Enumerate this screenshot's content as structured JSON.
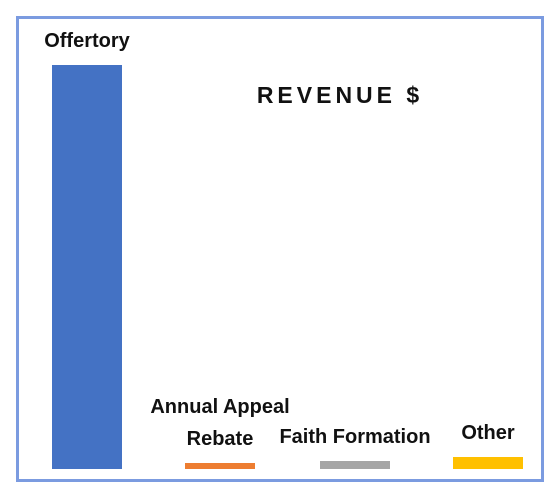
{
  "chart_data": {
    "type": "bar",
    "title": "REVENUE $",
    "categories": [
      "Offertory",
      "Annual Appeal Rebate",
      "Faith Formation",
      "Other"
    ],
    "values": [
      100,
      1.5,
      2,
      3
    ],
    "colors": [
      "#4472c4",
      "#ed7d31",
      "#a5a5a5",
      "#ffc000"
    ],
    "ylim": [
      0,
      100
    ]
  }
}
